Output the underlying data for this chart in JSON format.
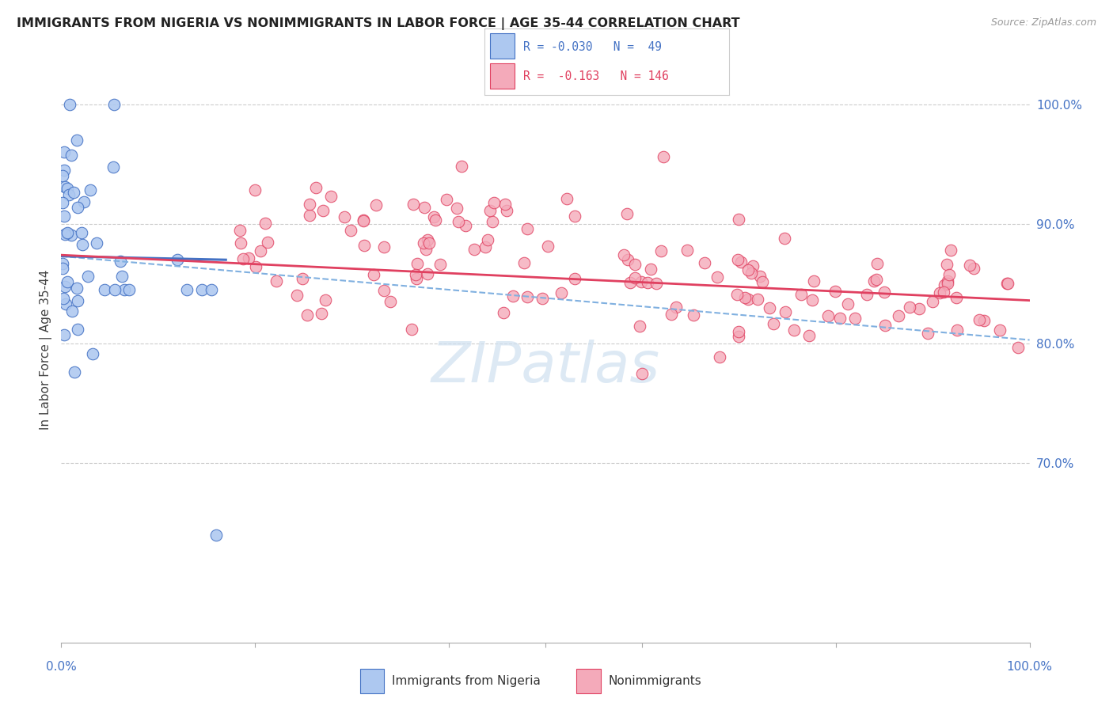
{
  "title": "IMMIGRANTS FROM NIGERIA VS NONIMMIGRANTS IN LABOR FORCE | AGE 35-44 CORRELATION CHART",
  "source": "Source: ZipAtlas.com",
  "ylabel": "In Labor Force | Age 35-44",
  "x_range": [
    0.0,
    1.0
  ],
  "y_range": [
    0.55,
    1.04
  ],
  "y_ticks": [
    0.7,
    0.8,
    0.9,
    1.0
  ],
  "y_tick_labels": [
    "70.0%",
    "80.0%",
    "90.0%",
    "100.0%"
  ],
  "x_tick_positions": [
    0.0,
    0.2,
    0.4,
    0.5,
    0.6,
    0.8,
    1.0
  ],
  "blue_fill": "#adc8f0",
  "blue_edge": "#4472c4",
  "pink_fill": "#f4aaba",
  "pink_edge": "#e04060",
  "blue_trend_color": "#4472c4",
  "pink_trend_color": "#e04060",
  "dashed_color": "#80b0e0",
  "grid_color": "#cccccc",
  "watermark_color": "#cfe0f0",
  "legend_text_blue": "R = -0.030   N =  49",
  "legend_text_pink": "R =  -0.163   N = 146",
  "bottom_legend_1": "Immigrants from Nigeria",
  "bottom_legend_2": "Nonimmigrants",
  "dashed_trend_x": [
    0.0,
    1.0
  ],
  "dashed_trend_y": [
    0.873,
    0.803
  ],
  "blue_solid_trend_x": [
    0.0,
    0.17
  ],
  "blue_solid_trend_y": [
    0.873,
    0.87
  ],
  "pink_trend_x": [
    0.0,
    1.0
  ],
  "pink_trend_y": [
    0.874,
    0.836
  ]
}
